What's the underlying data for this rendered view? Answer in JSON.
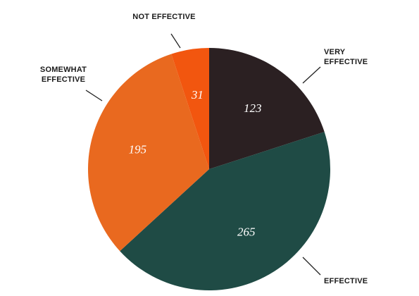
{
  "chart_data": {
    "type": "pie",
    "categories": [
      "VERY EFFECTIVE",
      "EFFECTIVE",
      "SOMEWHAT EFFECTIVE",
      "NOT EFFECTIVE"
    ],
    "values": [
      123,
      265,
      195,
      31
    ],
    "colors": [
      "#2b2022",
      "#1f4b45",
      "#e9691f",
      "#f2560f"
    ]
  }
}
